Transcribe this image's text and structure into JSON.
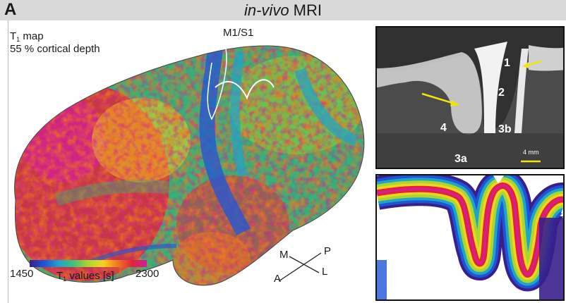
{
  "header": {
    "panel_letter": "A",
    "title_italic": "in-vivo",
    "title_rest": " MRI"
  },
  "map_label": {
    "line1_main": "T",
    "line1_sub": "1",
    "line1_rest": " map",
    "line2": "55 % cortical depth"
  },
  "region_label": "M1/S1",
  "colorbar": {
    "min": "1450",
    "max": "2300",
    "label_main": "T",
    "label_sub": "1",
    "label_rest": " values [s]",
    "colors": [
      "#3a1f8c",
      "#1d55d8",
      "#1fa5c8",
      "#3fc27a",
      "#a9d62f",
      "#f4d51e",
      "#f07a1c",
      "#e0233b",
      "#d41e9a"
    ]
  },
  "orientation": {
    "m": "M",
    "p": "P",
    "a": "A",
    "l": "L"
  },
  "mri_labels": [
    "1",
    "2",
    "4",
    "3b",
    "3a"
  ],
  "scale_bar": "4 mm",
  "colors": {
    "arrow": "#f2e40f",
    "header_bg": "#d9d9d9"
  }
}
